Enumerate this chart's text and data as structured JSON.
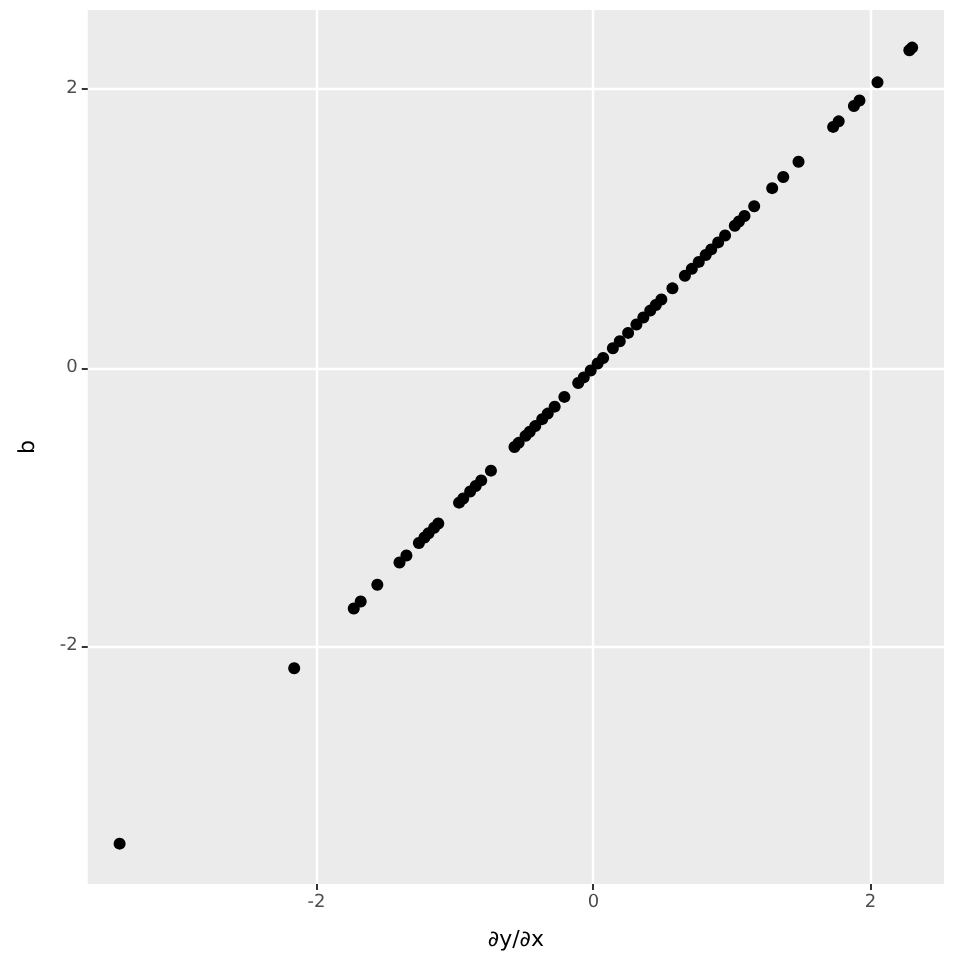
{
  "chart_data": {
    "type": "scatter",
    "xlabel": "∂y/∂x",
    "ylabel": "b",
    "x": [
      -3.42,
      -2.16,
      -1.73,
      -1.68,
      -1.56,
      -1.4,
      -1.35,
      -1.26,
      -1.22,
      -1.19,
      -1.15,
      -1.12,
      -0.97,
      -0.94,
      -0.89,
      -0.85,
      -0.81,
      -0.74,
      -0.57,
      -0.54,
      -0.49,
      -0.46,
      -0.42,
      -0.37,
      -0.33,
      -0.28,
      -0.21,
      -0.11,
      -0.07,
      -0.02,
      0.03,
      0.07,
      0.14,
      0.19,
      0.25,
      0.31,
      0.36,
      0.41,
      0.45,
      0.49,
      0.57,
      0.66,
      0.71,
      0.76,
      0.81,
      0.85,
      0.9,
      0.95,
      1.02,
      1.05,
      1.09,
      1.16,
      1.29,
      1.37,
      1.48,
      1.73,
      1.77,
      1.88,
      1.92,
      2.05,
      2.28,
      2.3
    ],
    "values": [
      -3.42,
      -2.16,
      -1.73,
      -1.68,
      -1.56,
      -1.4,
      -1.35,
      -1.26,
      -1.22,
      -1.19,
      -1.15,
      -1.12,
      -0.97,
      -0.94,
      -0.89,
      -0.85,
      -0.81,
      -0.74,
      -0.57,
      -0.54,
      -0.49,
      -0.46,
      -0.42,
      -0.37,
      -0.33,
      -0.28,
      -0.21,
      -0.11,
      -0.07,
      -0.02,
      0.03,
      0.07,
      0.14,
      0.19,
      0.25,
      0.31,
      0.36,
      0.41,
      0.45,
      0.49,
      0.57,
      0.66,
      0.71,
      0.76,
      0.81,
      0.85,
      0.9,
      0.95,
      1.02,
      1.05,
      1.09,
      1.16,
      1.29,
      1.37,
      1.48,
      1.73,
      1.77,
      1.88,
      1.92,
      2.05,
      2.28,
      2.3
    ],
    "color": "#000000",
    "marker": "circle",
    "xlim": [
      -3.65,
      2.53
    ],
    "ylim": [
      -3.71,
      2.57
    ],
    "xticks": [
      -2,
      0,
      2
    ],
    "yticks": [
      -2,
      0,
      2
    ],
    "grid": true
  }
}
